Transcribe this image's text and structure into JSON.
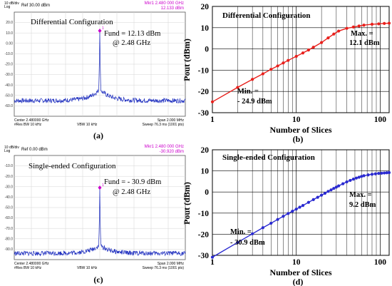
{
  "colors": {
    "trace_blue": "#1f2fbf",
    "marker_magenta": "#cc00cc",
    "red_curve": "#e8201c",
    "blue_curve": "#2a2ad0"
  },
  "chart_data": [
    {
      "type": "line",
      "panel_label": "(a)",
      "header": {
        "scale": "10 dB/div",
        "scale_type": "Log",
        "ref": "Ref 30.00 dBm",
        "marker": "Mkr1 2.480 000 GHz",
        "marker_value": "12.133 dBm"
      },
      "y_ticks": [
        "20.0",
        "10.0",
        "0.00",
        "-10.0",
        "-20.0",
        "-30.0",
        "-40.0",
        "-50.0",
        "-60.0"
      ],
      "ylim": [
        -70,
        30
      ],
      "x_ticks": [],
      "title": "Differential Configuration",
      "marker_index": "1",
      "annotation": {
        "line1": "Fund = 12.13 dBm",
        "line2": "@ 2.48 GHz"
      },
      "footer": {
        "center": "Center 2.480000 GHz",
        "res_bw": "#Res BW 10 kHz",
        "vbw": "VBW 10 kHz",
        "span": "Span 2.000 MHz",
        "sweep": "Sweep  76.3 ms (1001 pts)"
      },
      "xlim": [
        -1,
        1
      ],
      "peak_level": 12.13,
      "noise_floor": -55,
      "skirt_level": -44
    },
    {
      "type": "line",
      "panel_label": "(b)",
      "title": "Differential Configuration",
      "xlabel": "Number of Slices",
      "ylabel": "Pout (dBm)",
      "x_scale": "log",
      "xlim": [
        1,
        128
      ],
      "ylim": [
        -30,
        20
      ],
      "x_ticks": [
        "1",
        "10",
        "100"
      ],
      "y_ticks": [
        "20",
        "10",
        "0",
        "-10",
        "-20",
        "-30"
      ],
      "series": [
        {
          "x": [
            1,
            2,
            3,
            4,
            5,
            6,
            7,
            8,
            10,
            12,
            14,
            16,
            20,
            24,
            28,
            32,
            40,
            48,
            56,
            64,
            80,
            96,
            112,
            128
          ],
          "values": [
            -24.9,
            -18.1,
            -14.3,
            -11.7,
            -9.6,
            -8.0,
            -6.6,
            -5.4,
            -3.5,
            -1.9,
            -0.5,
            0.8,
            3.0,
            5.2,
            7.0,
            8.4,
            9.7,
            10.3,
            10.8,
            11.2,
            11.6,
            11.8,
            12.0,
            12.1
          ]
        }
      ],
      "min_label": {
        "line1": "Min. =",
        "line2": "-  24.9 dBm"
      },
      "max_label": {
        "line1": "Max. =",
        "line2": "12.1 dBm"
      }
    },
    {
      "type": "line",
      "panel_label": "(c)",
      "header": {
        "scale": "10 dB/div",
        "scale_type": "Log",
        "ref": "Ref 0.00 dBm",
        "marker": "Mkr1 2.480 000 GHz",
        "marker_value": "-30.920 dBm"
      },
      "y_ticks": [
        "-10.0",
        "-20.0",
        "-30.0",
        "-40.0",
        "-50.0",
        "-60.0",
        "-70.0",
        "-80.0",
        "-90.0"
      ],
      "ylim": [
        -100,
        0
      ],
      "x_ticks": [],
      "title": "Single-ended Configuration",
      "marker_index": "1",
      "annotation": {
        "line1": "Fund = -  30.9 dBm",
        "line2": "@ 2.48 GHz"
      },
      "footer": {
        "center": "Center 2.480000 GHz",
        "res_bw": "#Res BW 10 kHz",
        "vbw": "VBW 10 kHz",
        "span": "Span 2.000 MHz",
        "sweep": "Sweep  76.3 ms (1001 pts)"
      },
      "xlim": [
        -1,
        1
      ],
      "peak_level": -30.92,
      "noise_floor": -94,
      "skirt_level": -86
    },
    {
      "type": "line",
      "panel_label": "(d)",
      "title": "Single-ended Configuration",
      "xlabel": "Number of Slices",
      "ylabel": "Pout (dBm)",
      "x_scale": "log",
      "xlim": [
        1,
        128
      ],
      "ylim": [
        -30,
        20
      ],
      "x_ticks": [
        "1",
        "10",
        "100"
      ],
      "y_ticks": [
        "20",
        "10",
        "0",
        "-10",
        "-20",
        "-30"
      ],
      "series": [
        {
          "x": [
            1,
            2,
            3,
            4,
            5,
            6,
            7,
            8,
            9,
            10,
            11,
            12,
            14,
            16,
            18,
            20,
            22,
            24,
            26,
            28,
            30,
            32,
            36,
            40,
            44,
            48,
            52,
            56,
            60,
            64,
            72,
            80,
            88,
            96,
            104,
            112,
            120,
            128
          ],
          "values": [
            -30.9,
            -23.9,
            -19.8,
            -16.9,
            -14.8,
            -13.0,
            -11.5,
            -10.2,
            -9.1,
            -8.1,
            -7.2,
            -6.4,
            -4.9,
            -3.6,
            -2.5,
            -1.5,
            -0.6,
            0.3,
            1.0,
            1.7,
            2.3,
            2.9,
            3.9,
            4.8,
            5.5,
            6.1,
            6.6,
            7.0,
            7.4,
            7.7,
            8.1,
            8.4,
            8.6,
            8.8,
            8.9,
            9.0,
            9.1,
            9.2
          ]
        }
      ],
      "min_label": {
        "line1": "Min. =",
        "line2": "-  30.9 dBm"
      },
      "max_label": {
        "line1": "Max. =",
        "line2": "9.2 dBm"
      }
    }
  ]
}
